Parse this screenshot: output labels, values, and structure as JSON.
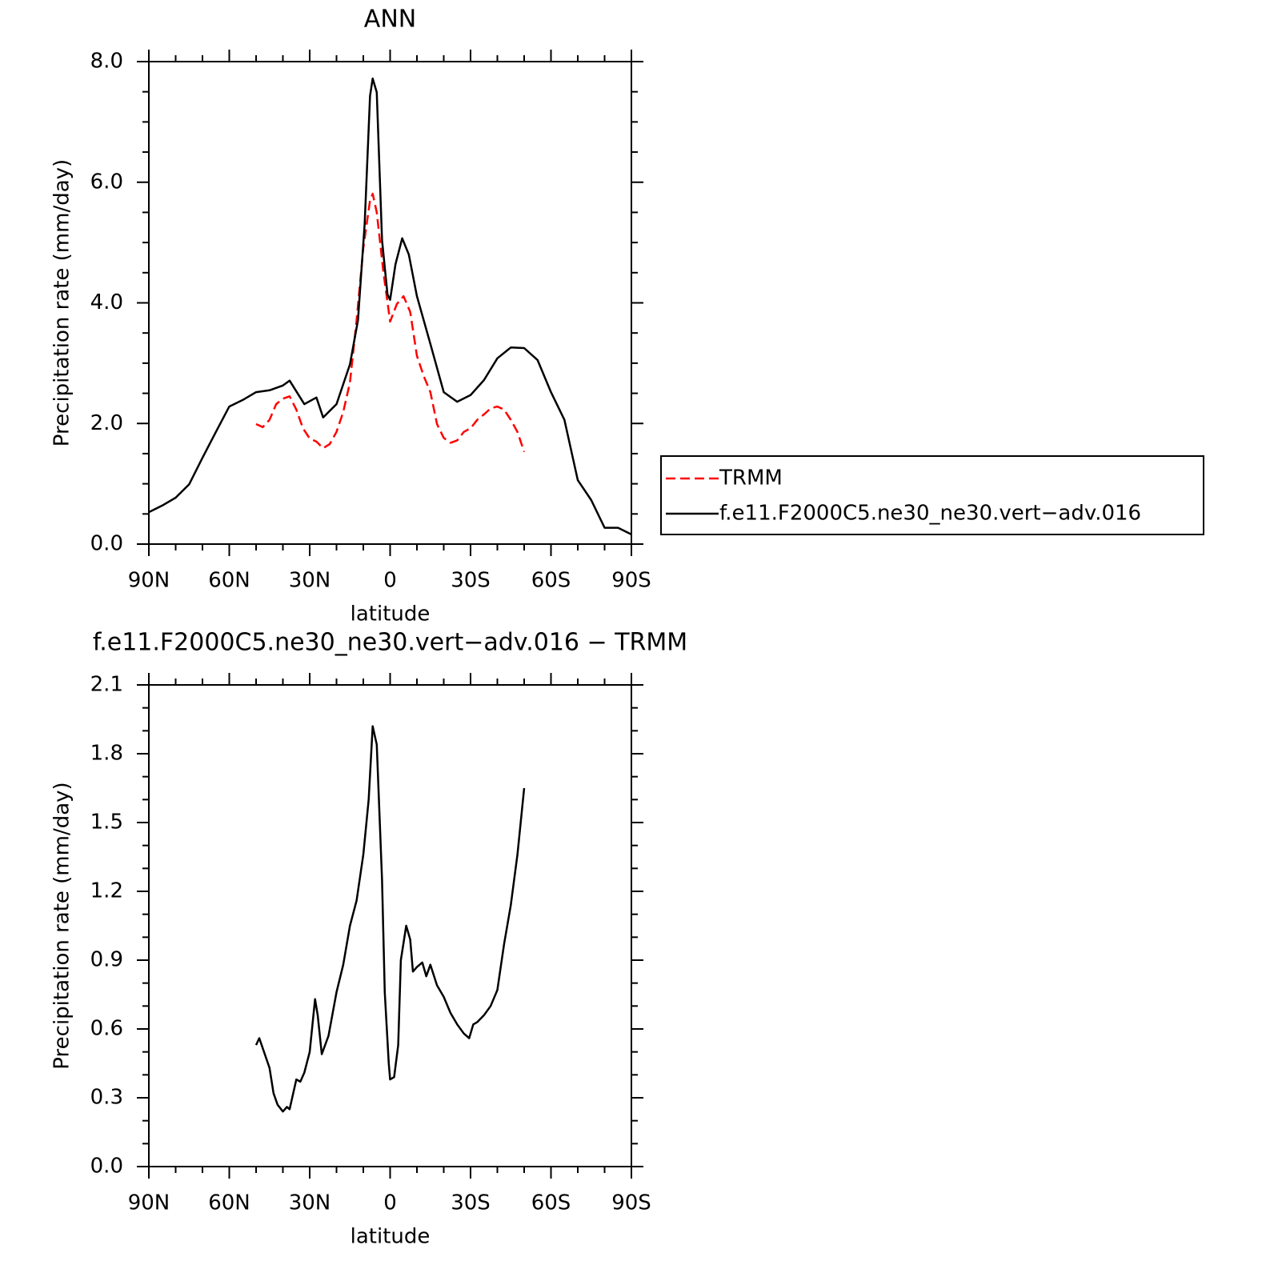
{
  "chart_data": [
    {
      "type": "line",
      "title": "ANN",
      "xlabel": "latitude",
      "ylabel": "Precipitation rate (mm/day)",
      "xlim": [
        90,
        -90
      ],
      "ylim": [
        0,
        8
      ],
      "xticks": [
        {
          "value": 90,
          "label": "90N"
        },
        {
          "value": 60,
          "label": "60N"
        },
        {
          "value": 30,
          "label": "30N"
        },
        0,
        {
          "value": -30,
          "label": "30S"
        },
        {
          "value": -60,
          "label": "60S"
        },
        {
          "value": -90,
          "label": "90S"
        }
      ],
      "yticks": [
        {
          "value": 0,
          "label": "0.0"
        },
        {
          "value": 2,
          "label": "2.0"
        },
        {
          "value": 4,
          "label": "4.0"
        },
        {
          "value": 6,
          "label": "6.0"
        },
        {
          "value": 8,
          "label": "8.0"
        }
      ],
      "legend": "right",
      "series": [
        {
          "name": "TRMM",
          "color": "#ff0000",
          "linestyle": "dashed",
          "x": [
            50,
            47.5,
            45,
            42.5,
            40,
            37.5,
            35,
            32.5,
            30,
            27.5,
            25,
            22.5,
            20,
            17.5,
            15,
            12.5,
            10,
            7.5,
            6.5,
            5,
            2.5,
            0,
            -2.5,
            -5,
            -7.5,
            -10,
            -12.5,
            -15,
            -17.5,
            -20,
            -22.5,
            -25,
            -27.5,
            -30,
            -32.5,
            -35,
            -37.5,
            -40,
            -42.5,
            -45,
            -47.5,
            -50
          ],
          "values": [
            1.99,
            1.94,
            2.06,
            2.32,
            2.41,
            2.45,
            2.23,
            1.92,
            1.75,
            1.7,
            1.59,
            1.66,
            1.86,
            2.19,
            2.68,
            3.71,
            4.91,
            5.7,
            5.81,
            5.5,
            4.51,
            3.69,
            3.98,
            4.11,
            3.85,
            3.12,
            2.79,
            2.52,
            1.99,
            1.76,
            1.68,
            1.72,
            1.86,
            1.92,
            2.06,
            2.15,
            2.25,
            2.28,
            2.23,
            2.06,
            1.86,
            1.53
          ]
        },
        {
          "name": "f.e11.F2000C5.ne30_ne30.vert−adv.016",
          "color": "#000000",
          "linestyle": "solid",
          "x": [
            90,
            85,
            80,
            75,
            70,
            65,
            60,
            55,
            50,
            45,
            40,
            37.5,
            32,
            27.5,
            25,
            20,
            15,
            12,
            9.5,
            7.5,
            6.5,
            5,
            3,
            1,
            0,
            -2,
            -4.5,
            -7,
            -10,
            -15,
            -20,
            -25,
            -30,
            -35,
            -40,
            -45,
            -50,
            -55,
            -60,
            -65,
            -70,
            -75,
            -80,
            -85,
            -90
          ],
          "values": [
            0.53,
            0.64,
            0.77,
            0.99,
            1.43,
            1.86,
            2.28,
            2.39,
            2.52,
            2.55,
            2.63,
            2.71,
            2.32,
            2.43,
            2.1,
            2.32,
            2.98,
            3.71,
            5.31,
            7.43,
            7.72,
            7.49,
            5.04,
            4.14,
            4.05,
            4.64,
            5.07,
            4.8,
            4.11,
            3.32,
            2.52,
            2.36,
            2.47,
            2.72,
            3.08,
            3.26,
            3.25,
            3.05,
            2.52,
            2.06,
            1.06,
            0.73,
            0.27,
            0.27,
            0.16
          ]
        }
      ]
    },
    {
      "type": "line",
      "title": "f.e11.F2000C5.ne30_ne30.vert−adv.016 − TRMM",
      "xlabel": "latitude",
      "ylabel": "Precipitation rate (mm/day)",
      "xlim": [
        90,
        -90
      ],
      "ylim": [
        0,
        2.1
      ],
      "xticks": [
        {
          "value": 90,
          "label": "90N"
        },
        {
          "value": 60,
          "label": "60N"
        },
        {
          "value": 30,
          "label": "30N"
        },
        0,
        {
          "value": -30,
          "label": "30S"
        },
        {
          "value": -60,
          "label": "60S"
        },
        {
          "value": -90,
          "label": "90S"
        }
      ],
      "yticks": [
        {
          "value": 0,
          "label": "0.0"
        },
        0.3,
        0.6,
        0.9,
        1.2,
        1.5,
        1.8,
        2.1
      ],
      "series": [
        {
          "color": "#000000",
          "linestyle": "solid",
          "x": [
            50,
            48.8,
            45,
            43.5,
            42,
            40,
            38.5,
            37.5,
            35,
            33.5,
            32,
            30,
            28,
            27,
            25.5,
            23,
            20,
            17.5,
            15,
            12.5,
            10,
            8,
            6.5,
            5,
            3,
            2,
            0.5,
            0,
            -1.5,
            -3,
            -4,
            -6,
            -7.5,
            -8.5,
            -10,
            -12,
            -13.5,
            -15,
            -17.5,
            -20,
            -22.5,
            -25,
            -27.5,
            -29.5,
            -31,
            -32.5,
            -35,
            -37.5,
            -40,
            -42.5,
            -45,
            -47.5,
            -50
          ],
          "values": [
            0.53,
            0.56,
            0.43,
            0.32,
            0.27,
            0.24,
            0.26,
            0.25,
            0.38,
            0.37,
            0.41,
            0.5,
            0.73,
            0.66,
            0.49,
            0.57,
            0.76,
            0.88,
            1.05,
            1.16,
            1.36,
            1.6,
            1.92,
            1.84,
            1.25,
            0.76,
            0.45,
            0.38,
            0.39,
            0.53,
            0.9,
            1.05,
            0.99,
            0.85,
            0.87,
            0.89,
            0.83,
            0.88,
            0.79,
            0.74,
            0.67,
            0.62,
            0.58,
            0.56,
            0.62,
            0.63,
            0.66,
            0.7,
            0.77,
            0.97,
            1.14,
            1.36,
            1.65
          ]
        }
      ]
    }
  ]
}
